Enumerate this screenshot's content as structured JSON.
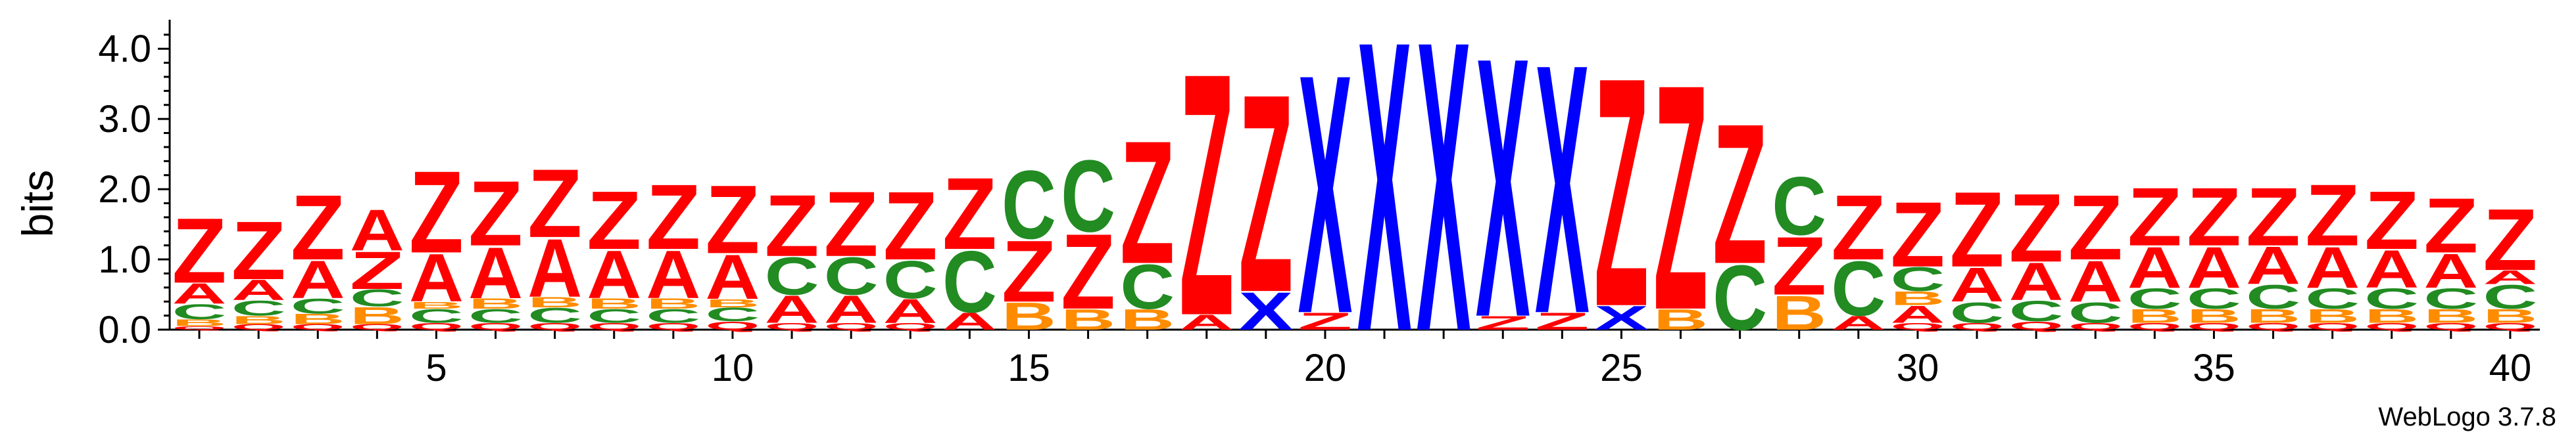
{
  "chart_data": {
    "type": "sequence-logo",
    "ylabel": "bits",
    "ylim": [
      0,
      4.32
    ],
    "yticks": [
      "0.0",
      "1.0",
      "2.0",
      "3.0",
      "4.0"
    ],
    "xlim": [
      0.5,
      40.5
    ],
    "xticks": [
      "5",
      "10",
      "15",
      "20",
      "25",
      "30",
      "35",
      "40"
    ],
    "credit": "WebLogo 3.7.8",
    "colors": {
      "Z": "#ff0000",
      "A": "#ff0000",
      "X": "#0000ff",
      "C": "#228b22",
      "B": "#ff8c00",
      "Q": "#ff0000",
      "R": "#ff0000"
    },
    "positions": [
      {
        "pos": 1,
        "stack": [
          [
            "Q",
            0.05
          ],
          [
            "B",
            0.1
          ],
          [
            "C",
            0.22
          ],
          [
            "A",
            0.3
          ],
          [
            "Z",
            0.95
          ]
        ]
      },
      {
        "pos": 2,
        "stack": [
          [
            "Q",
            0.08
          ],
          [
            "B",
            0.12
          ],
          [
            "C",
            0.22
          ],
          [
            "A",
            0.3
          ],
          [
            "Z",
            0.85
          ]
        ]
      },
      {
        "pos": 3,
        "stack": [
          [
            "Q",
            0.08
          ],
          [
            "B",
            0.15
          ],
          [
            "C",
            0.22
          ],
          [
            "A",
            0.55
          ],
          [
            "Z",
            0.95
          ]
        ]
      },
      {
        "pos": 4,
        "stack": [
          [
            "Q",
            0.08
          ],
          [
            "B",
            0.25
          ],
          [
            "C",
            0.25
          ],
          [
            "Z",
            0.55
          ],
          [
            "A",
            0.6
          ]
        ]
      },
      {
        "pos": 5,
        "stack": [
          [
            "Q",
            0.1
          ],
          [
            "C",
            0.2
          ],
          [
            "B",
            0.1
          ],
          [
            "A",
            0.7
          ],
          [
            "Z",
            1.2
          ]
        ]
      },
      {
        "pos": 6,
        "stack": [
          [
            "Q",
            0.1
          ],
          [
            "C",
            0.2
          ],
          [
            "B",
            0.15
          ],
          [
            "A",
            0.75
          ],
          [
            "Z",
            0.95
          ]
        ]
      },
      {
        "pos": 7,
        "stack": [
          [
            "Q",
            0.1
          ],
          [
            "C",
            0.22
          ],
          [
            "B",
            0.15
          ],
          [
            "A",
            0.85
          ],
          [
            "Z",
            1.0
          ]
        ]
      },
      {
        "pos": 8,
        "stack": [
          [
            "Q",
            0.1
          ],
          [
            "C",
            0.2
          ],
          [
            "B",
            0.15
          ],
          [
            "A",
            0.7
          ],
          [
            "Z",
            0.85
          ]
        ]
      },
      {
        "pos": 9,
        "stack": [
          [
            "Q",
            0.1
          ],
          [
            "C",
            0.2
          ],
          [
            "B",
            0.15
          ],
          [
            "A",
            0.7
          ],
          [
            "Z",
            0.95
          ]
        ]
      },
      {
        "pos": 10,
        "stack": [
          [
            "Q",
            0.12
          ],
          [
            "C",
            0.2
          ],
          [
            "B",
            0.12
          ],
          [
            "A",
            0.65
          ],
          [
            "Z",
            1.0
          ]
        ]
      },
      {
        "pos": 11,
        "stack": [
          [
            "Q",
            0.1
          ],
          [
            "A",
            0.4
          ],
          [
            "C",
            0.55
          ],
          [
            "Z",
            0.9
          ]
        ]
      },
      {
        "pos": 12,
        "stack": [
          [
            "Q",
            0.1
          ],
          [
            "A",
            0.4
          ],
          [
            "C",
            0.55
          ],
          [
            "Z",
            0.95
          ]
        ]
      },
      {
        "pos": 13,
        "stack": [
          [
            "Q",
            0.1
          ],
          [
            "A",
            0.35
          ],
          [
            "C",
            0.55
          ],
          [
            "Z",
            1.0
          ]
        ]
      },
      {
        "pos": 14,
        "stack": [
          [
            "A",
            0.25
          ],
          [
            "C",
            0.9
          ],
          [
            "Z",
            1.05
          ]
        ]
      },
      {
        "pos": 15,
        "stack": [
          [
            "B",
            0.4
          ],
          [
            "Z",
            0.9
          ],
          [
            "C",
            1.0
          ]
        ]
      },
      {
        "pos": 16,
        "stack": [
          [
            "B",
            0.3
          ],
          [
            "Z",
            1.1
          ],
          [
            "C",
            1.05
          ]
        ]
      },
      {
        "pos": 17,
        "stack": [
          [
            "B",
            0.3
          ],
          [
            "C",
            0.65
          ],
          [
            "Z",
            1.8
          ]
        ]
      },
      {
        "pos": 18,
        "stack": [
          [
            "A",
            0.22
          ],
          [
            "Z",
            3.55
          ]
        ]
      },
      {
        "pos": 19,
        "stack": [
          [
            "X",
            0.55
          ],
          [
            "Z",
            2.9
          ]
        ]
      },
      {
        "pos": 20,
        "stack": [
          [
            "Z",
            0.25
          ],
          [
            "X",
            3.5
          ]
        ]
      },
      {
        "pos": 21,
        "stack": [
          [
            "X",
            4.25
          ]
        ]
      },
      {
        "pos": 22,
        "stack": [
          [
            "X",
            4.25
          ]
        ]
      },
      {
        "pos": 23,
        "stack": [
          [
            "Z",
            0.2
          ],
          [
            "X",
            3.8
          ]
        ]
      },
      {
        "pos": 24,
        "stack": [
          [
            "Z",
            0.25
          ],
          [
            "X",
            3.65
          ]
        ]
      },
      {
        "pos": 25,
        "stack": [
          [
            "X",
            0.35
          ],
          [
            "Z",
            3.35
          ]
        ]
      },
      {
        "pos": 26,
        "stack": [
          [
            "B",
            0.3
          ],
          [
            "Z",
            3.3
          ]
        ]
      },
      {
        "pos": 27,
        "stack": [
          [
            "C",
            0.95
          ],
          [
            "Z",
            2.05
          ]
        ]
      },
      {
        "pos": 28,
        "stack": [
          [
            "B",
            0.5
          ],
          [
            "Z",
            0.85
          ],
          [
            "C",
            0.85
          ]
        ]
      },
      {
        "pos": 29,
        "stack": [
          [
            "A",
            0.2
          ],
          [
            "C",
            0.8
          ],
          [
            "Z",
            0.95
          ]
        ]
      },
      {
        "pos": 30,
        "stack": [
          [
            "Q",
            0.1
          ],
          [
            "A",
            0.25
          ],
          [
            "B",
            0.2
          ],
          [
            "C",
            0.35
          ],
          [
            "Z",
            0.95
          ]
        ]
      },
      {
        "pos": 31,
        "stack": [
          [
            "Q",
            0.1
          ],
          [
            "C",
            0.3
          ],
          [
            "A",
            0.5
          ],
          [
            "Z",
            1.1
          ]
        ]
      },
      {
        "pos": 32,
        "stack": [
          [
            "Q",
            0.12
          ],
          [
            "C",
            0.3
          ],
          [
            "A",
            0.55
          ],
          [
            "Z",
            1.0
          ]
        ]
      },
      {
        "pos": 33,
        "stack": [
          [
            "Q",
            0.1
          ],
          [
            "C",
            0.3
          ],
          [
            "A",
            0.6
          ],
          [
            "Z",
            0.95
          ]
        ]
      },
      {
        "pos": 34,
        "stack": [
          [
            "Q",
            0.1
          ],
          [
            "B",
            0.2
          ],
          [
            "C",
            0.3
          ],
          [
            "A",
            0.6
          ],
          [
            "Z",
            0.85
          ]
        ]
      },
      {
        "pos": 35,
        "stack": [
          [
            "Q",
            0.1
          ],
          [
            "B",
            0.2
          ],
          [
            "C",
            0.3
          ],
          [
            "A",
            0.6
          ],
          [
            "Z",
            0.85
          ]
        ]
      },
      {
        "pos": 36,
        "stack": [
          [
            "Q",
            0.1
          ],
          [
            "B",
            0.2
          ],
          [
            "C",
            0.35
          ],
          [
            "A",
            0.55
          ],
          [
            "Z",
            0.85
          ]
        ]
      },
      {
        "pos": 37,
        "stack": [
          [
            "Q",
            0.1
          ],
          [
            "B",
            0.2
          ],
          [
            "C",
            0.3
          ],
          [
            "A",
            0.6
          ],
          [
            "Z",
            0.9
          ]
        ]
      },
      {
        "pos": 38,
        "stack": [
          [
            "Q",
            0.1
          ],
          [
            "B",
            0.2
          ],
          [
            "C",
            0.3
          ],
          [
            "A",
            0.55
          ],
          [
            "Z",
            0.85
          ]
        ]
      },
      {
        "pos": 39,
        "stack": [
          [
            "Q",
            0.1
          ],
          [
            "B",
            0.2
          ],
          [
            "C",
            0.3
          ],
          [
            "A",
            0.5
          ],
          [
            "Z",
            0.8
          ]
        ]
      },
      {
        "pos": 40,
        "stack": [
          [
            "Q",
            0.1
          ],
          [
            "B",
            0.2
          ],
          [
            "C",
            0.35
          ],
          [
            "A",
            0.2
          ],
          [
            "Z",
            0.9
          ]
        ]
      }
    ]
  }
}
